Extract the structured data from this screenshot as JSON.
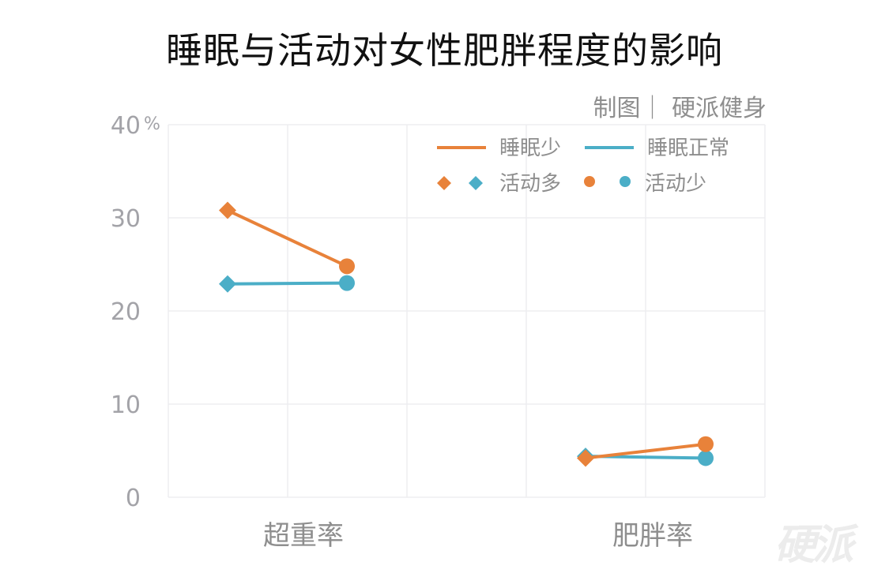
{
  "title": "睡眠与活动对女性肥胖程度的影响",
  "credit": "制图｜ 硬派健身",
  "watermark": "硬派",
  "colors": {
    "sleep_less": "#E8823A",
    "sleep_normal": "#4BAEC7",
    "grid": "#EDEDF0",
    "axis_text": "#A3A3A8"
  },
  "chart_data": {
    "type": "line",
    "title": "睡眠与活动对女性肥胖程度的影响",
    "xlabel": "",
    "ylabel": "",
    "y_unit": "%",
    "ylim": [
      0,
      40
    ],
    "yticks": [
      0,
      10,
      20,
      30,
      40
    ],
    "grid": true,
    "legend_position": "top-right",
    "categories": [
      "超重率",
      "肥胖率"
    ],
    "sub_categories": [
      "活动多",
      "活动少"
    ],
    "series": [
      {
        "name": "睡眠少",
        "color": "#E8823A",
        "groups": [
          {
            "category": "超重率",
            "values": [
              30.8,
              24.8
            ]
          },
          {
            "category": "肥胖率",
            "values": [
              4.2,
              5.7
            ]
          }
        ]
      },
      {
        "name": "睡眠正常",
        "color": "#4BAEC7",
        "groups": [
          {
            "category": "超重率",
            "values": [
              22.9,
              23.0
            ]
          },
          {
            "category": "肥胖率",
            "values": [
              4.4,
              4.2
            ]
          }
        ]
      }
    ],
    "legend": {
      "lines": [
        "睡眠少",
        "睡眠正常"
      ],
      "markers": [
        {
          "label": "活动多",
          "shape": "diamond"
        },
        {
          "label": "活动少",
          "shape": "circle"
        }
      ]
    }
  }
}
